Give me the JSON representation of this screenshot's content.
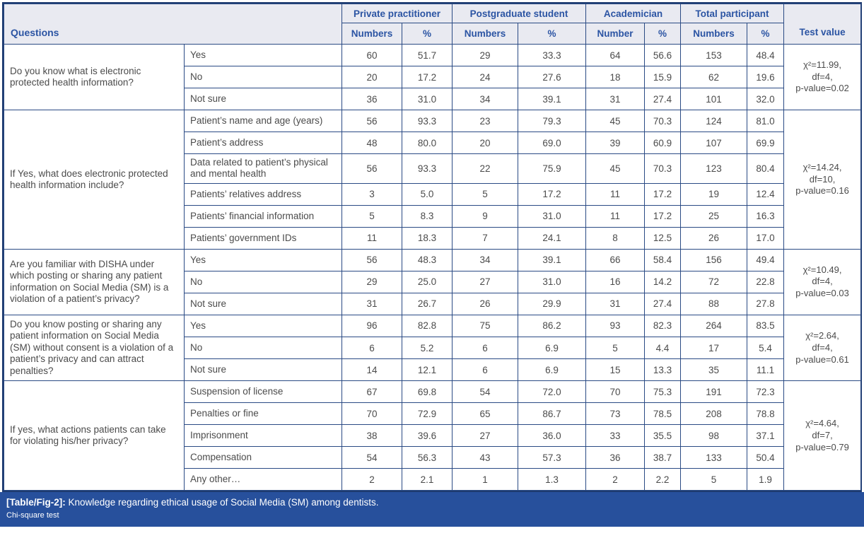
{
  "colors": {
    "header_bg": "#e9eaf1",
    "header_text": "#2b54a3",
    "grid_border": "#2a4a84",
    "outer_border": "#1d3a6f",
    "body_text": "#4b4b4b",
    "footer_bg": "#27509c",
    "footer_text": "#ffffff"
  },
  "table": {
    "header": {
      "questions": "Questions",
      "groups": [
        {
          "label": "Private practitioner",
          "sub": [
            "Numbers",
            "%"
          ]
        },
        {
          "label": "Postgraduate student",
          "sub": [
            "Numbers",
            "%"
          ]
        },
        {
          "label": "Academician",
          "sub": [
            "Number",
            "%"
          ]
        },
        {
          "label": "Total participant",
          "sub": [
            "Numbers",
            "%"
          ]
        }
      ],
      "test_value": "Test value"
    },
    "sections": [
      {
        "question": "Do you know what is electronic protected health information?",
        "rows": [
          {
            "option": "Yes",
            "values": [
              "60",
              "51.7",
              "29",
              "33.3",
              "64",
              "56.6",
              "153",
              "48.4"
            ]
          },
          {
            "option": "No",
            "values": [
              "20",
              "17.2",
              "24",
              "27.6",
              "18",
              "15.9",
              "62",
              "19.6"
            ]
          },
          {
            "option": "Not sure",
            "values": [
              "36",
              "31.0",
              "34",
              "39.1",
              "31",
              "27.4",
              "101",
              "32.0"
            ]
          }
        ],
        "test": "χ²=11.99,\ndf=4,\np-value=0.02"
      },
      {
        "question": "If Yes, what does electronic protected health information include?",
        "rows": [
          {
            "option": "Patient’s name and age (years)",
            "values": [
              "56",
              "93.3",
              "23",
              "79.3",
              "45",
              "70.3",
              "124",
              "81.0"
            ]
          },
          {
            "option": "Patient’s address",
            "values": [
              "48",
              "80.0",
              "20",
              "69.0",
              "39",
              "60.9",
              "107",
              "69.9"
            ]
          },
          {
            "option": "Data related to patient’s physical and mental health",
            "values": [
              "56",
              "93.3",
              "22",
              "75.9",
              "45",
              "70.3",
              "123",
              "80.4"
            ]
          },
          {
            "option": "Patients’ relatives address",
            "values": [
              "3",
              "5.0",
              "5",
              "17.2",
              "11",
              "17.2",
              "19",
              "12.4"
            ]
          },
          {
            "option": "Patients’ financial information",
            "values": [
              "5",
              "8.3",
              "9",
              "31.0",
              "11",
              "17.2",
              "25",
              "16.3"
            ]
          },
          {
            "option": "Patients’ government IDs",
            "values": [
              "11",
              "18.3",
              "7",
              "24.1",
              "8",
              "12.5",
              "26",
              "17.0"
            ]
          }
        ],
        "test": "χ²=14.24,\ndf=10,\np-value=0.16"
      },
      {
        "question": "Are you familiar with DISHA under which posting or sharing any patient information on Social Media (SM) is a violation of a patient’s privacy?",
        "rows": [
          {
            "option": "Yes",
            "values": [
              "56",
              "48.3",
              "34",
              "39.1",
              "66",
              "58.4",
              "156",
              "49.4"
            ]
          },
          {
            "option": "No",
            "values": [
              "29",
              "25.0",
              "27",
              "31.0",
              "16",
              "14.2",
              "72",
              "22.8"
            ]
          },
          {
            "option": "Not sure",
            "values": [
              "31",
              "26.7",
              "26",
              "29.9",
              "31",
              "27.4",
              "88",
              "27.8"
            ]
          }
        ],
        "test": "χ²=10.49,\ndf=4,\np-value=0.03"
      },
      {
        "question": "Do you know posting or sharing any patient information on Social Media (SM) without consent is a violation of a patient’s privacy and can attract penalties?",
        "rows": [
          {
            "option": "Yes",
            "values": [
              "96",
              "82.8",
              "75",
              "86.2",
              "93",
              "82.3",
              "264",
              "83.5"
            ]
          },
          {
            "option": "No",
            "values": [
              "6",
              "5.2",
              "6",
              "6.9",
              "5",
              "4.4",
              "17",
              "5.4"
            ]
          },
          {
            "option": "Not sure",
            "values": [
              "14",
              "12.1",
              "6",
              "6.9",
              "15",
              "13.3",
              "35",
              "11.1"
            ]
          }
        ],
        "test": "χ²=2.64,\ndf=4,\np-value=0.61"
      },
      {
        "question": "If yes, what actions patients can take for violating his/her privacy?",
        "rows": [
          {
            "option": "Suspension of license",
            "values": [
              "67",
              "69.8",
              "54",
              "72.0",
              "70",
              "75.3",
              "191",
              "72.3"
            ]
          },
          {
            "option": "Penalties or fine",
            "values": [
              "70",
              "72.9",
              "65",
              "86.7",
              "73",
              "78.5",
              "208",
              "78.8"
            ]
          },
          {
            "option": "Imprisonment",
            "values": [
              "38",
              "39.6",
              "27",
              "36.0",
              "33",
              "35.5",
              "98",
              "37.1"
            ]
          },
          {
            "option": "Compensation",
            "values": [
              "54",
              "56.3",
              "43",
              "57.3",
              "36",
              "38.7",
              "133",
              "50.4"
            ]
          },
          {
            "option": "Any other…",
            "values": [
              "2",
              "2.1",
              "1",
              "1.3",
              "2",
              "2.2",
              "5",
              "1.9"
            ]
          }
        ],
        "test": "χ²=4.64,\ndf=7,\np-value=0.79"
      }
    ]
  },
  "footer": {
    "label": "[Table/Fig-2]:",
    "caption": " Knowledge regarding ethical usage of Social Media (SM) among dentists.",
    "note": "Chi-square test"
  }
}
